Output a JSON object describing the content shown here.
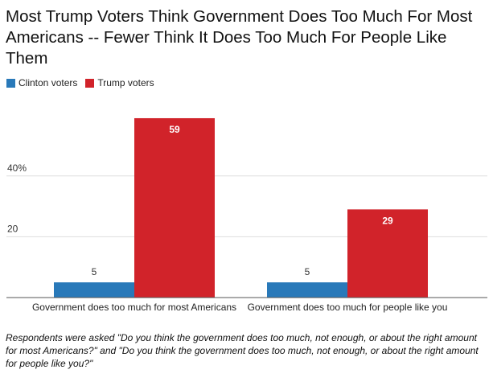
{
  "chart_data": {
    "type": "bar",
    "title": "Most Trump Voters Think Government Does Too Much For Most Americans -- Fewer Think It Does Too Much For People Like Them",
    "categories": [
      "Government does too much for most Americans",
      "Government does too much for people like you"
    ],
    "series": [
      {
        "name": "Clinton voters",
        "color": "#2979b9",
        "values": [
          5,
          5
        ]
      },
      {
        "name": "Trump voters",
        "color": "#d1232a",
        "values": [
          59,
          29
        ]
      }
    ],
    "yticks": [
      {
        "value": 20,
        "label": "20"
      },
      {
        "value": 40,
        "label": "40%"
      }
    ],
    "ylim": [
      0,
      62
    ],
    "grid": true,
    "legend_position": "top-left"
  },
  "footnote": "Respondents were asked \"Do you think the government does too much, not enough, or about the right amount for most Americans?\" and \"Do you think the government does too much, not enough, or about the right amount for people like you?\""
}
